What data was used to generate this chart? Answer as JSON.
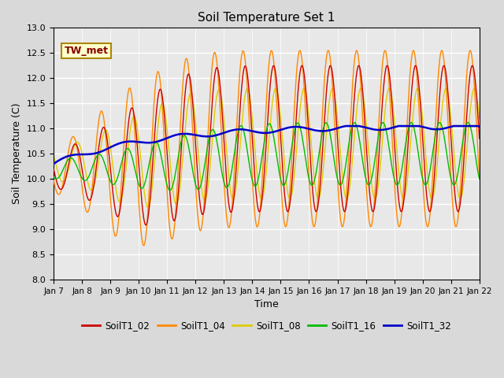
{
  "title": "Soil Temperature Set 1",
  "xlabel": "Time",
  "ylabel": "Soil Temperature (C)",
  "ylim": [
    8.0,
    13.0
  ],
  "yticks": [
    8.0,
    8.5,
    9.0,
    9.5,
    10.0,
    10.5,
    11.0,
    11.5,
    12.0,
    12.5,
    13.0
  ],
  "series_colors": {
    "SoilT1_02": "#cc0000",
    "SoilT1_04": "#ff8800",
    "SoilT1_08": "#ddcc00",
    "SoilT1_16": "#00bb00",
    "SoilT1_32": "#0000cc"
  },
  "annotation_text": "TW_met",
  "annotation_color": "#880000",
  "annotation_bg": "#ffffcc",
  "annotation_border": "#aa8800",
  "bg_color": "#d9d9d9",
  "plot_bg_color": "#e8e8e8",
  "grid_color": "#ffffff",
  "title_fontsize": 11,
  "label_fontsize": 9,
  "tick_fontsize": 8
}
